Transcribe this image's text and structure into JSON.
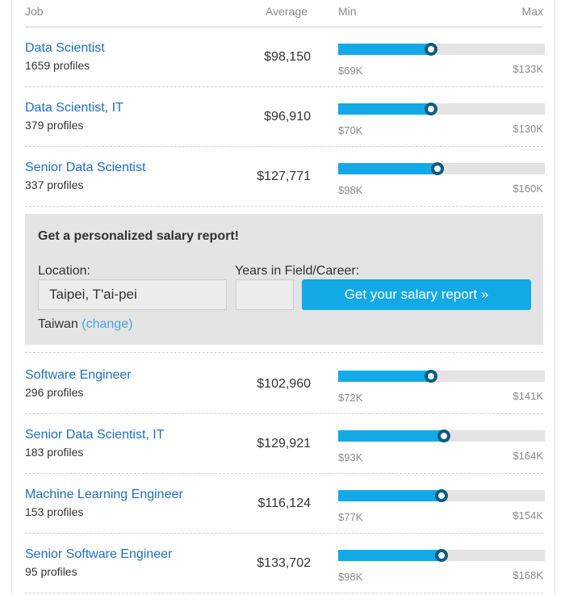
{
  "header": {
    "job": "Job",
    "average": "Average",
    "min": "Min",
    "max": "Max"
  },
  "colors": {
    "link": "#1f6fc0",
    "bar_fill": "#13a9e6",
    "bar_track": "#e3e3e3",
    "marker": "#0b5c80",
    "panel": "#e4e4e4"
  },
  "rows_top": [
    {
      "title": "Data Scientist",
      "profiles": "1659 profiles",
      "average": "$98,150",
      "min": "$69K",
      "max": "$133K",
      "avg_fraction": 0.45
    },
    {
      "title": "Data Scientist, IT",
      "profiles": "379 profiles",
      "average": "$96,910",
      "min": "$70K",
      "max": "$130K",
      "avg_fraction": 0.45
    },
    {
      "title": "Senior Data Scientist",
      "profiles": "337 profiles",
      "average": "$127,771",
      "min": "$98K",
      "max": "$160K",
      "avg_fraction": 0.48
    }
  ],
  "cta": {
    "title": "Get a personalized salary report!",
    "location_label": "Location:",
    "location_value": "Taipei, T'ai-pei",
    "years_label": "Years in Field/Career:",
    "years_value": "",
    "button_label": "Get your salary report »",
    "country": "Taiwan",
    "change_label": "(change)"
  },
  "rows_bottom": [
    {
      "title": "Software Engineer",
      "profiles": "296 profiles",
      "average": "$102,960",
      "min": "$72K",
      "max": "$141K",
      "avg_fraction": 0.45
    },
    {
      "title": "Senior Data Scientist, IT",
      "profiles": "183 profiles",
      "average": "$129,921",
      "min": "$93K",
      "max": "$164K",
      "avg_fraction": 0.51
    },
    {
      "title": "Machine Learning Engineer",
      "profiles": "153 profiles",
      "average": "$116,124",
      "min": "$77K",
      "max": "$154K",
      "avg_fraction": 0.5
    },
    {
      "title": "Senior Software Engineer",
      "profiles": "95 profiles",
      "average": "$133,702",
      "min": "$98K",
      "max": "$168K",
      "avg_fraction": 0.5
    }
  ]
}
